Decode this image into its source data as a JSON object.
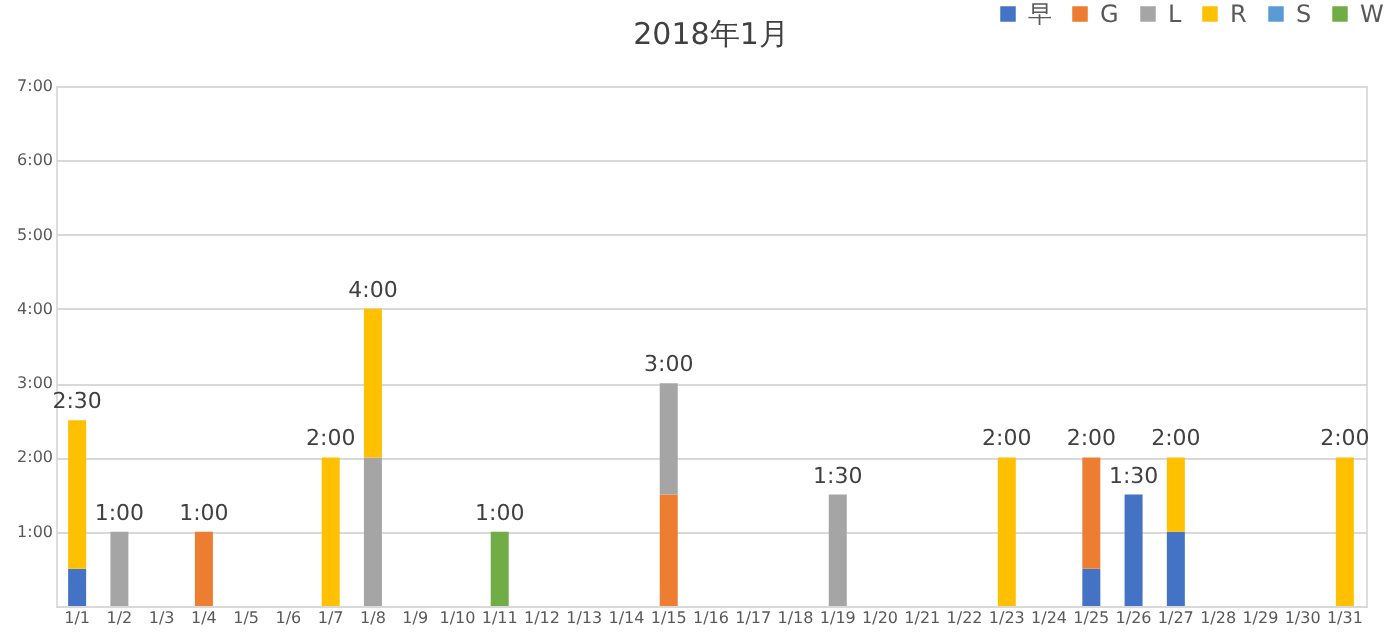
{
  "chart_data": {
    "type": "bar",
    "stacked": true,
    "title": "2018年1月",
    "categories": [
      "1/1",
      "1/2",
      "1/3",
      "1/4",
      "1/5",
      "1/6",
      "1/7",
      "1/8",
      "1/9",
      "1/10",
      "1/11",
      "1/12",
      "1/13",
      "1/14",
      "1/15",
      "1/16",
      "1/17",
      "1/18",
      "1/19",
      "1/20",
      "1/21",
      "1/22",
      "1/23",
      "1/24",
      "1/25",
      "1/26",
      "1/27",
      "1/28",
      "1/29",
      "1/30",
      "1/31"
    ],
    "series": [
      {
        "name": "早",
        "color": "#4472c4",
        "values": [
          0.5,
          null,
          null,
          null,
          null,
          null,
          null,
          null,
          null,
          null,
          null,
          null,
          null,
          null,
          null,
          null,
          null,
          null,
          null,
          null,
          null,
          null,
          null,
          null,
          0.5,
          1.5,
          1,
          null,
          null,
          null,
          null
        ]
      },
      {
        "name": "G",
        "color": "#ed7d31",
        "values": [
          null,
          null,
          null,
          1,
          null,
          null,
          null,
          null,
          null,
          null,
          null,
          null,
          null,
          null,
          1.5,
          null,
          null,
          null,
          null,
          null,
          null,
          null,
          null,
          null,
          1.5,
          null,
          null,
          null,
          null,
          null,
          null
        ]
      },
      {
        "name": "L",
        "color": "#a5a5a5",
        "values": [
          null,
          1,
          null,
          null,
          null,
          null,
          null,
          2,
          null,
          null,
          null,
          null,
          null,
          null,
          1.5,
          null,
          null,
          null,
          1.5,
          null,
          null,
          null,
          null,
          null,
          null,
          null,
          null,
          null,
          null,
          null,
          null
        ]
      },
      {
        "name": "R",
        "color": "#ffc000",
        "values": [
          2,
          null,
          null,
          null,
          null,
          null,
          2,
          2,
          null,
          null,
          null,
          null,
          null,
          null,
          null,
          null,
          null,
          null,
          null,
          null,
          null,
          null,
          2,
          null,
          null,
          null,
          1,
          null,
          null,
          null,
          2
        ]
      },
      {
        "name": "S",
        "color": "#5b9bd5",
        "values": [
          null,
          null,
          null,
          null,
          null,
          null,
          null,
          null,
          null,
          null,
          null,
          null,
          null,
          null,
          null,
          null,
          null,
          null,
          null,
          null,
          null,
          null,
          null,
          null,
          null,
          null,
          null,
          null,
          null,
          null,
          null
        ]
      },
      {
        "name": "W",
        "color": "#70ad47",
        "values": [
          null,
          null,
          null,
          null,
          null,
          null,
          null,
          null,
          null,
          null,
          1,
          null,
          null,
          null,
          null,
          null,
          null,
          null,
          null,
          null,
          null,
          null,
          null,
          null,
          null,
          null,
          null,
          null,
          null,
          null,
          null
        ]
      }
    ],
    "totals": [
      "2:30",
      "1:00",
      null,
      "1:00",
      null,
      null,
      "2:00",
      "4:00",
      null,
      null,
      "1:00",
      null,
      null,
      null,
      "3:00",
      null,
      null,
      null,
      "1:30",
      null,
      null,
      null,
      "2:00",
      null,
      "2:00",
      "1:30",
      "2:00",
      null,
      null,
      null,
      "2:00"
    ],
    "ylim": [
      0,
      7
    ],
    "yticks": [
      {
        "value": 0,
        "label": null
      },
      {
        "value": 1,
        "label": "1:00"
      },
      {
        "value": 2,
        "label": "2:00"
      },
      {
        "value": 3,
        "label": "3:00"
      },
      {
        "value": 4,
        "label": "4:00"
      },
      {
        "value": 5,
        "label": "5:00"
      },
      {
        "value": 6,
        "label": "6:00"
      },
      {
        "value": 7,
        "label": "7:00"
      }
    ],
    "grid": "y",
    "legend": "top right"
  }
}
